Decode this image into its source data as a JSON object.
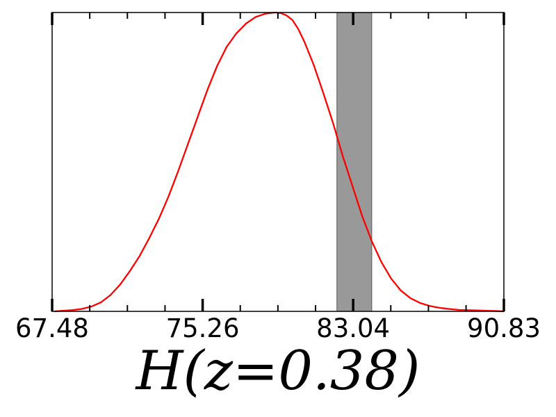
{
  "chart_data": {
    "type": "line",
    "title": "",
    "xlabel": "H(z=0.38)",
    "ylabel": "",
    "xlim": [
      67.48,
      90.83
    ],
    "ylim": [
      0,
      1
    ],
    "xticks": [
      67.48,
      75.26,
      83.04,
      90.83
    ],
    "xtick_labels": [
      "67.48",
      "75.26",
      "83.04",
      "90.83"
    ],
    "grid": false,
    "band": {
      "x_min": 82.2,
      "x_max": 84.0,
      "color": "#999999"
    },
    "series": [
      {
        "color": "#ff0000",
        "x": [
          67.6,
          68.0,
          68.5,
          69.0,
          69.5,
          70.0,
          70.5,
          71.0,
          71.5,
          72.0,
          72.5,
          73.0,
          73.5,
          74.0,
          74.5,
          75.0,
          75.5,
          76.0,
          76.5,
          77.0,
          77.5,
          78.0,
          78.5,
          79.0,
          79.3,
          79.6,
          79.9,
          80.2,
          80.5,
          81.0,
          81.5,
          82.0,
          82.5,
          83.0,
          83.5,
          84.0,
          84.5,
          85.0,
          85.5,
          86.0,
          86.5,
          87.0,
          87.5,
          88.0,
          88.5,
          89.0,
          89.5,
          90.0,
          90.5,
          90.83
        ],
        "y": [
          0.0,
          0.002,
          0.004,
          0.008,
          0.016,
          0.03,
          0.055,
          0.09,
          0.135,
          0.185,
          0.245,
          0.31,
          0.385,
          0.47,
          0.56,
          0.65,
          0.74,
          0.82,
          0.885,
          0.93,
          0.963,
          0.985,
          0.996,
          1.0,
          0.998,
          0.99,
          0.975,
          0.945,
          0.905,
          0.825,
          0.73,
          0.63,
          0.52,
          0.42,
          0.32,
          0.235,
          0.165,
          0.11,
          0.07,
          0.044,
          0.028,
          0.018,
          0.012,
          0.008,
          0.005,
          0.004,
          0.003,
          0.002,
          0.001,
          0.0
        ]
      }
    ]
  }
}
